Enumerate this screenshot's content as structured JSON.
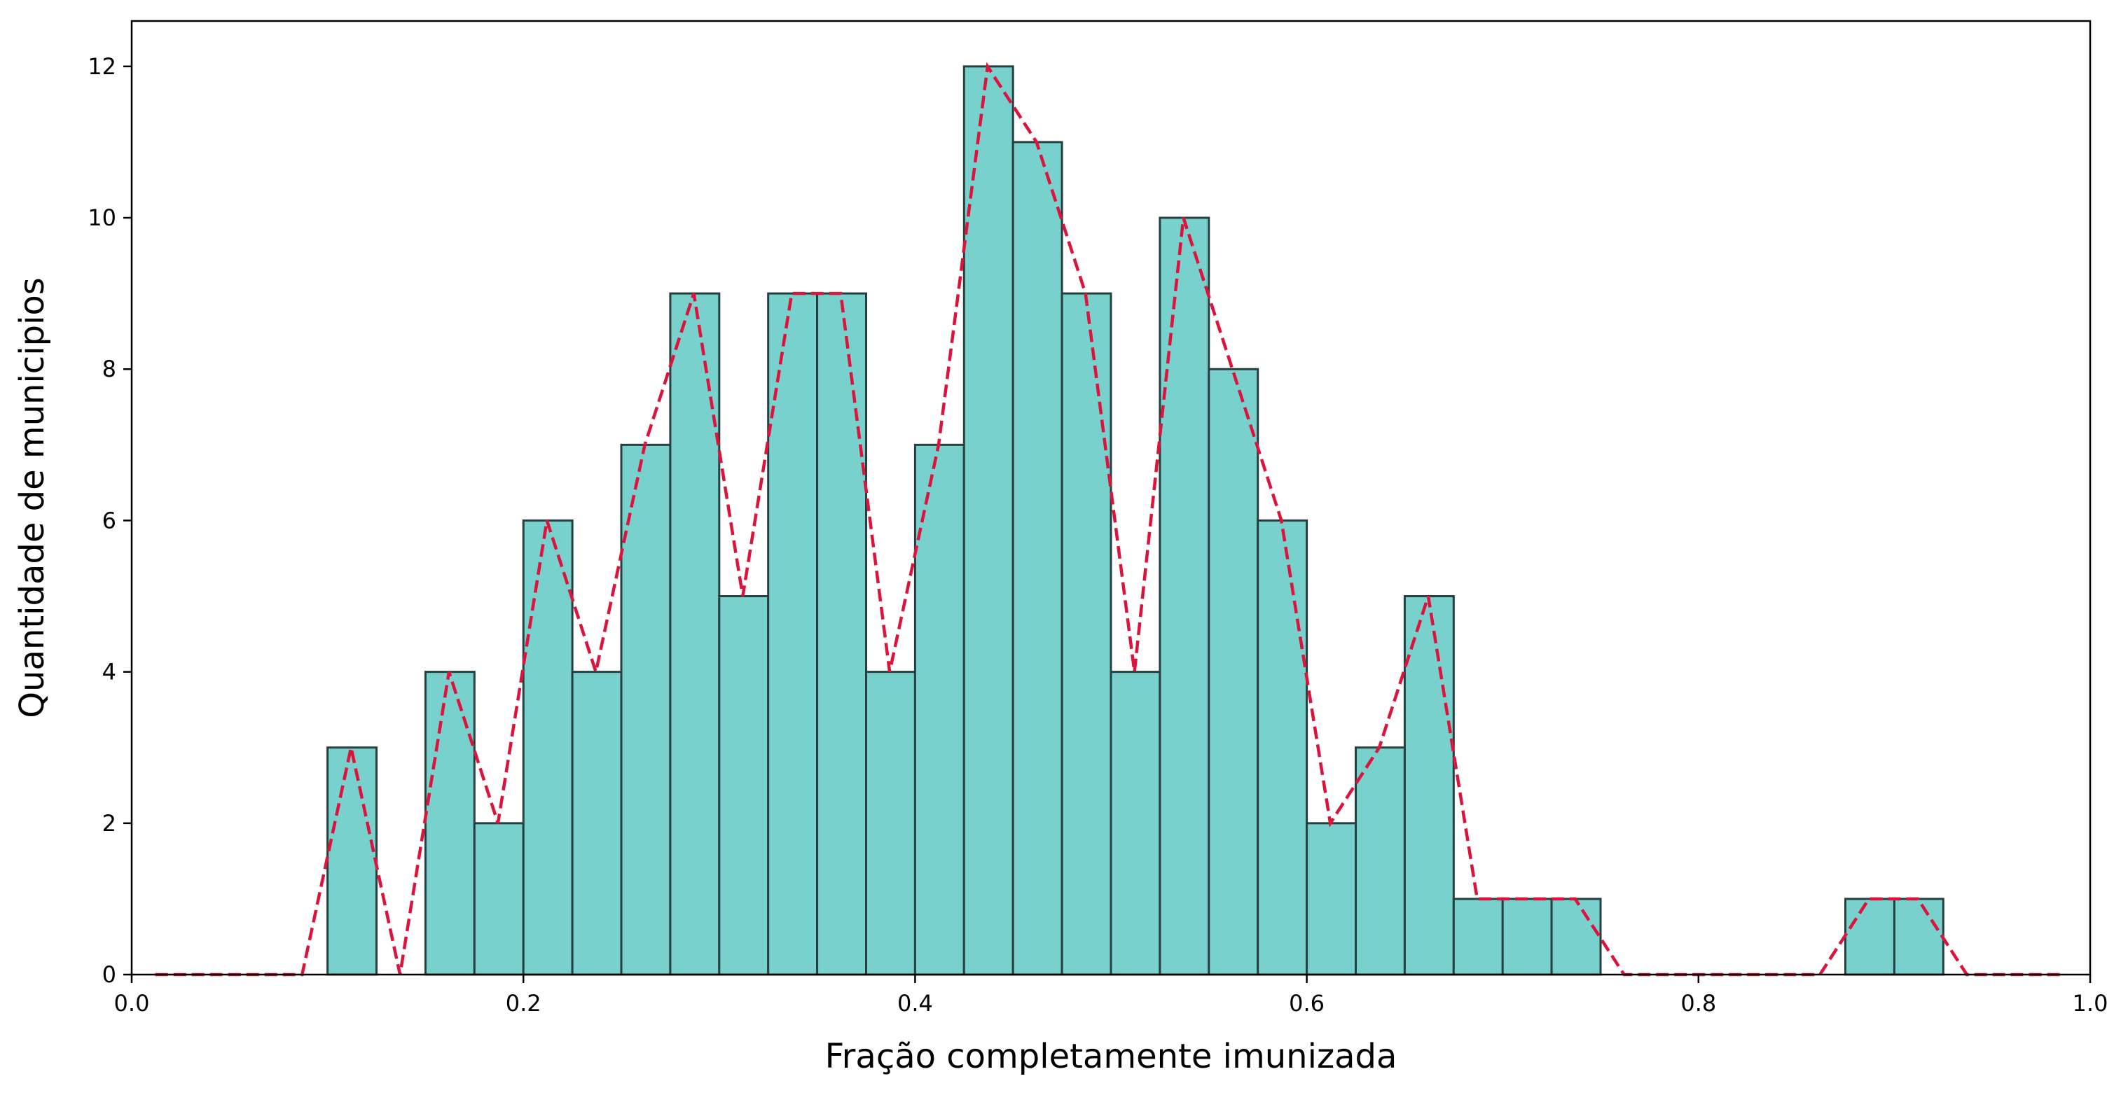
{
  "chart_data": {
    "type": "bar",
    "subtype": "histogram",
    "title": "",
    "xlabel": "Fração completamente imunizada",
    "ylabel": "Quantidade de municipios",
    "xlim": [
      0.0,
      1.0
    ],
    "ylim": [
      0,
      12.6
    ],
    "x_ticks": [
      0.0,
      0.2,
      0.4,
      0.6,
      0.8,
      1.0
    ],
    "x_tick_labels": [
      "0.0",
      "0.2",
      "0.4",
      "0.6",
      "0.8",
      "1.0"
    ],
    "y_ticks": [
      0,
      2,
      4,
      6,
      8,
      10,
      12
    ],
    "y_tick_labels": [
      "0",
      "2",
      "4",
      "6",
      "8",
      "10",
      "12"
    ],
    "grid": false,
    "bar_color": "#79d1cd",
    "bar_edge_color": "#26403f",
    "line_color": "#dc143c",
    "bins": [
      {
        "x0": 0.1,
        "x1": 0.125,
        "count": 3
      },
      {
        "x0": 0.15,
        "x1": 0.175,
        "count": 4
      },
      {
        "x0": 0.175,
        "x1": 0.2,
        "count": 2
      },
      {
        "x0": 0.2,
        "x1": 0.225,
        "count": 6
      },
      {
        "x0": 0.225,
        "x1": 0.25,
        "count": 4
      },
      {
        "x0": 0.25,
        "x1": 0.275,
        "count": 7
      },
      {
        "x0": 0.275,
        "x1": 0.3,
        "count": 9
      },
      {
        "x0": 0.3,
        "x1": 0.325,
        "count": 5
      },
      {
        "x0": 0.325,
        "x1": 0.35,
        "count": 9
      },
      {
        "x0": 0.35,
        "x1": 0.375,
        "count": 9
      },
      {
        "x0": 0.375,
        "x1": 0.4,
        "count": 4
      },
      {
        "x0": 0.4,
        "x1": 0.425,
        "count": 7
      },
      {
        "x0": 0.425,
        "x1": 0.45,
        "count": 12
      },
      {
        "x0": 0.45,
        "x1": 0.475,
        "count": 11
      },
      {
        "x0": 0.475,
        "x1": 0.5,
        "count": 9
      },
      {
        "x0": 0.5,
        "x1": 0.525,
        "count": 4
      },
      {
        "x0": 0.525,
        "x1": 0.55,
        "count": 10
      },
      {
        "x0": 0.55,
        "x1": 0.575,
        "count": 8
      },
      {
        "x0": 0.575,
        "x1": 0.6,
        "count": 6
      },
      {
        "x0": 0.6,
        "x1": 0.625,
        "count": 2
      },
      {
        "x0": 0.625,
        "x1": 0.65,
        "count": 3
      },
      {
        "x0": 0.65,
        "x1": 0.675,
        "count": 5
      },
      {
        "x0": 0.675,
        "x1": 0.7,
        "count": 1
      },
      {
        "x0": 0.7,
        "x1": 0.725,
        "count": 1
      },
      {
        "x0": 0.725,
        "x1": 0.75,
        "count": 1
      },
      {
        "x0": 0.875,
        "x1": 0.9,
        "count": 1
      },
      {
        "x0": 0.9,
        "x1": 0.925,
        "count": 1
      }
    ],
    "line": {
      "x": [
        0.012,
        0.087,
        0.112,
        0.137,
        0.162,
        0.187,
        0.212,
        0.237,
        0.262,
        0.287,
        0.312,
        0.337,
        0.362,
        0.387,
        0.412,
        0.437,
        0.462,
        0.487,
        0.512,
        0.537,
        0.562,
        0.587,
        0.612,
        0.637,
        0.662,
        0.687,
        0.712,
        0.737,
        0.762,
        0.862,
        0.887,
        0.912,
        0.937,
        0.987
      ],
      "y": [
        0,
        0,
        3,
        0,
        4,
        2,
        6,
        4,
        7,
        9,
        5,
        9,
        9,
        4,
        7,
        12,
        11,
        9,
        4,
        10,
        8,
        6,
        2,
        3,
        5,
        1,
        1,
        1,
        0,
        0,
        1,
        1,
        0,
        0
      ]
    }
  }
}
